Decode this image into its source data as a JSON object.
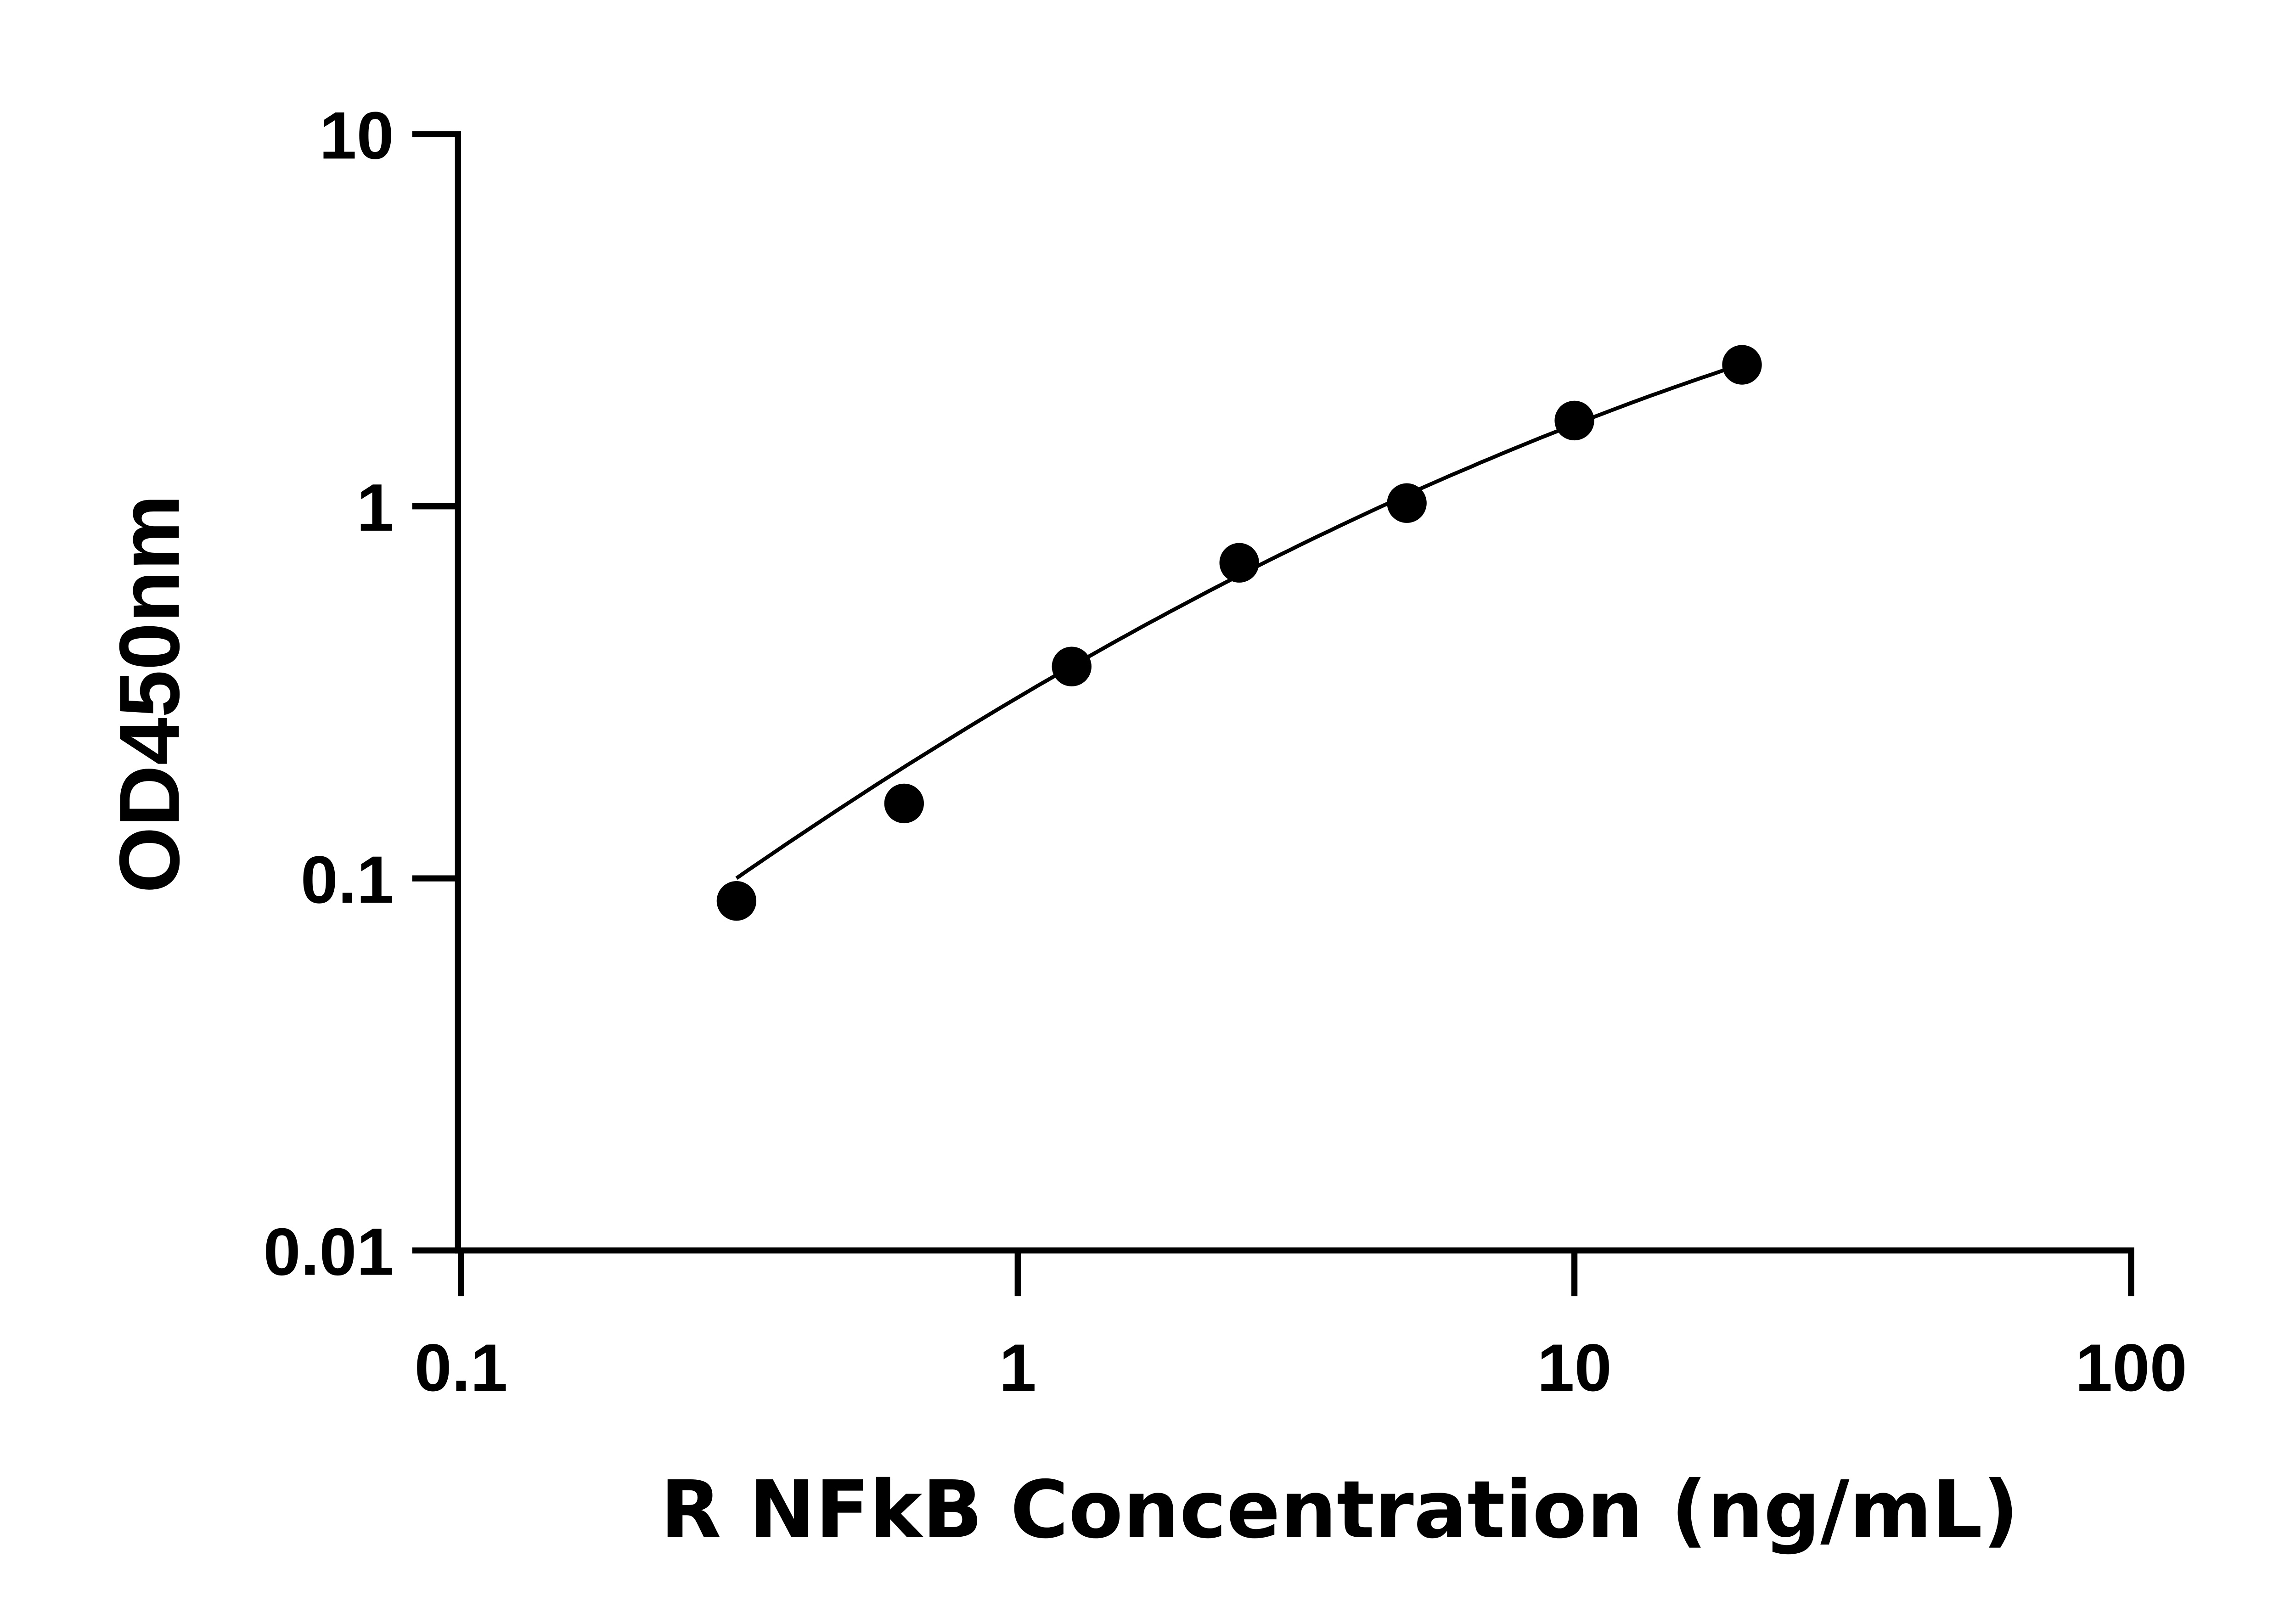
{
  "chart_data": {
    "type": "scatter",
    "xlabel": "R NFkB Concentration (ng/mL)",
    "ylabel": "OD450nm",
    "xscale": "log",
    "yscale": "log",
    "xlim": [
      0.1,
      100
    ],
    "ylim": [
      0.01,
      10
    ],
    "xticks": [
      "0.1",
      "1",
      "10",
      "100"
    ],
    "yticks": [
      "0.01",
      "0.1",
      "1",
      "10"
    ],
    "grid": false,
    "legend": "none",
    "x": [
      0.3125,
      0.625,
      1.25,
      2.5,
      5,
      10,
      20
    ],
    "y": [
      0.087,
      0.159,
      0.371,
      0.705,
      1.02,
      1.7,
      2.4
    ],
    "fit_curve": true,
    "colors": {
      "marker": "#000000",
      "line": "#000000"
    }
  }
}
